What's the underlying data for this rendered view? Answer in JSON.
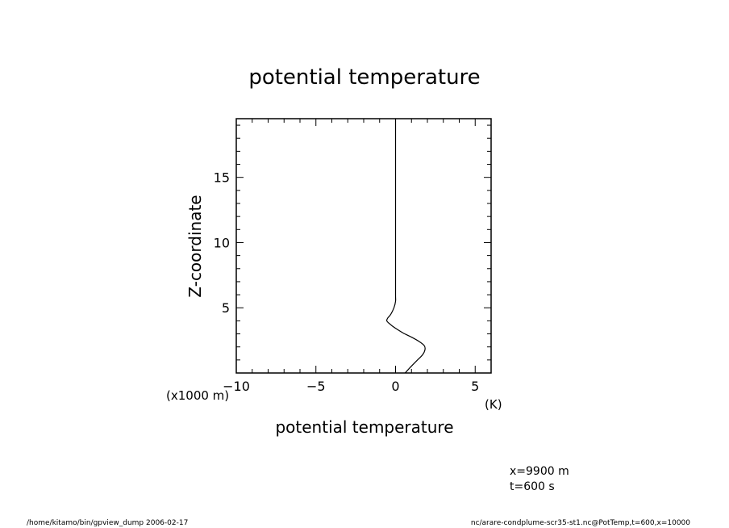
{
  "chart_data": {
    "type": "line",
    "title": "potential temperature",
    "xlabel": "potential temperature",
    "ylabel": "Z-coordinate",
    "x_unit": "(K)",
    "y_unit": "(x1000 m)",
    "xlim": [
      -10,
      6
    ],
    "ylim": [
      0,
      19.5
    ],
    "x_ticks": [
      -10,
      -5,
      0,
      5
    ],
    "x_tick_labels": [
      "−10",
      "−5",
      "0",
      "5"
    ],
    "y_ticks": [
      5,
      10,
      15
    ],
    "y_tick_labels": [
      "5",
      "10",
      "15"
    ],
    "grid": false,
    "series": [
      {
        "x": [
          0.6,
          0.9,
          1.3,
          1.7,
          1.85,
          1.8,
          1.5,
          1.0,
          0.5,
          0.1,
          -0.2,
          -0.4,
          -0.55,
          -0.5,
          -0.3,
          -0.1,
          0.0,
          0.0,
          0.0,
          0.0,
          0.0,
          0.0
        ],
        "y": [
          0.0,
          0.4,
          0.9,
          1.4,
          1.8,
          2.1,
          2.4,
          2.75,
          3.05,
          3.35,
          3.6,
          3.8,
          4.0,
          4.2,
          4.5,
          5.0,
          5.5,
          6.0,
          8.0,
          12.0,
          16.0,
          19.5
        ]
      }
    ]
  },
  "annotations": {
    "position_x": "x=9900 m",
    "time": "t=600 s"
  },
  "footer": {
    "left": "/home/kitamo/bin/gpview_dump  2006-02-17",
    "right": "nc/arare-condplume-scr35-st1.nc@PotTemp,t=600,x=10000"
  }
}
